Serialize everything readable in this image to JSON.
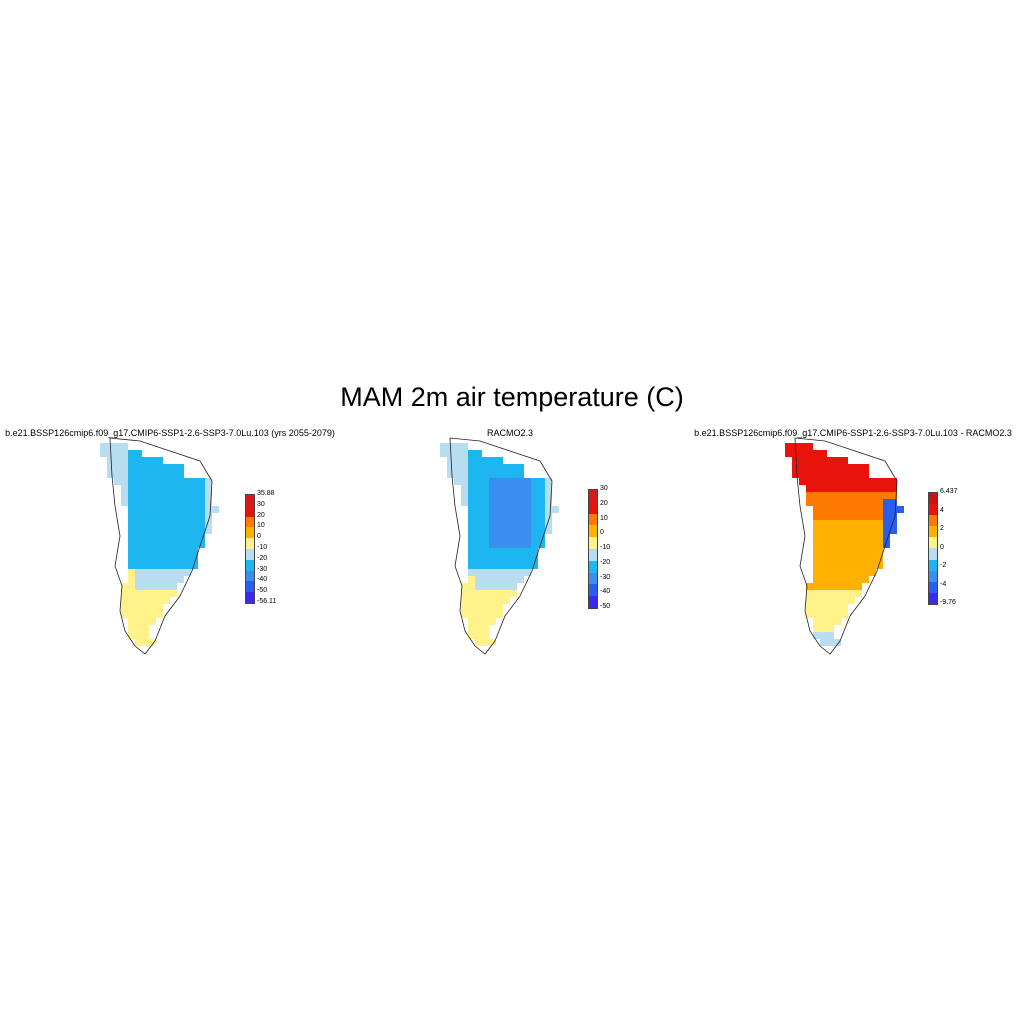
{
  "title": "MAM 2m air temperature (C)",
  "panels": [
    {
      "title": "b.e21.BSSP126cmip6.f09_g17.CMIP6-SSP1-2.6-SSP3-7.0Lu.103 (yrs 2055-2079)",
      "colorbar": {
        "labels": [
          "35.88",
          "30",
          "20",
          "10",
          "0",
          "-10",
          "-20",
          "-30",
          "-40",
          "-50",
          "-56.11"
        ],
        "colors": [
          "#d7191c",
          "#e8130b",
          "#ff7a00",
          "#ffb000",
          "#fff28a",
          "#b8dcf0",
          "#1eb6f0",
          "#3a8ef0",
          "#2a5ef0",
          "#3a2af0"
        ]
      },
      "field": "model"
    },
    {
      "title": "RACMO2.3",
      "colorbar": {
        "labels": [
          "30",
          "20",
          "10",
          "0",
          "-10",
          "-20",
          "-30",
          "-40",
          "-50"
        ],
        "colors": [
          "#d7191c",
          "#e8130b",
          "#ff7a00",
          "#ffb000",
          "#fff28a",
          "#b8dcf0",
          "#1eb6f0",
          "#3a8ef0",
          "#2a5ef0",
          "#3a2af0"
        ]
      },
      "field": "racmo"
    },
    {
      "title": "b.e21.BSSP126cmip6.f09_g17.CMIP6-SSP1-2.6-SSP3-7.0Lu.103 - RACMO2.3",
      "colorbar": {
        "labels": [
          "6.437",
          "4",
          "2",
          "0",
          "-2",
          "-4",
          "-9.76"
        ],
        "colors": [
          "#c81414",
          "#e8130b",
          "#ff7a00",
          "#ffb000",
          "#fff28a",
          "#b8dcf0",
          "#1eb6f0",
          "#3a8ef0",
          "#2a5ef0",
          "#3a2af0"
        ]
      },
      "field": "diff"
    }
  ]
}
